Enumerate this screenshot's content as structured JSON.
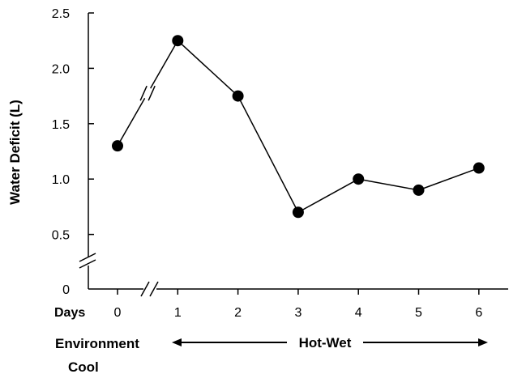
{
  "chart_data": {
    "type": "line",
    "title": "",
    "xlabel": "",
    "ylabel": "Water Deficit (L)",
    "x": [
      0,
      1,
      2,
      3,
      4,
      5,
      6
    ],
    "x_tick_labels": [
      "0",
      "1",
      "2",
      "3",
      "4",
      "5",
      "6"
    ],
    "series": [
      {
        "values": [
          1.3,
          2.25,
          1.75,
          0.7,
          1.0,
          0.9,
          1.1
        ]
      }
    ],
    "y_ticks": [
      "0",
      "0.5",
      "1.0",
      "1.5",
      "2.0",
      "2.5"
    ],
    "ylim": [
      0,
      2.5
    ],
    "y_axis_break": true,
    "x_axis_break": true,
    "line_break_between": [
      0,
      1
    ],
    "grid": false,
    "colors": {
      "line": "#000000",
      "marker": "#000000",
      "axis": "#000000"
    },
    "annotations": {
      "days_label": "Days",
      "environment_label": "Environment",
      "cool_label": "Cool",
      "hot_wet_label": "Hot-Wet"
    }
  }
}
